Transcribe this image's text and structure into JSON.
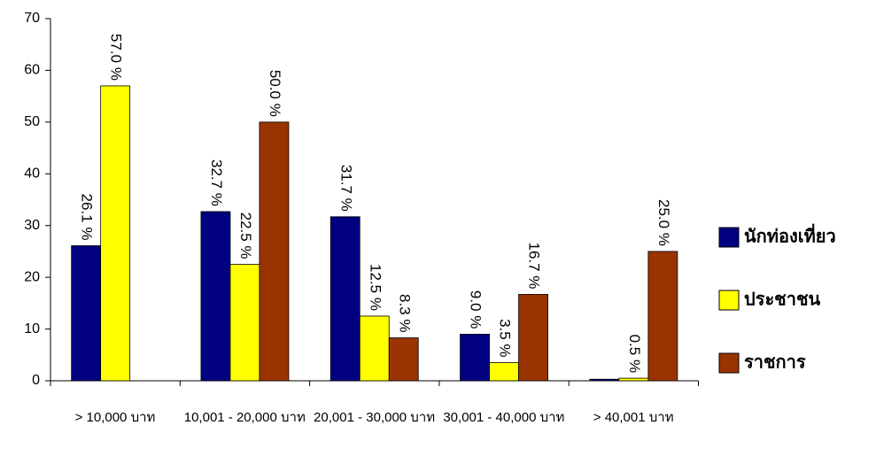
{
  "chart_data": {
    "type": "bar",
    "categories": [
      "> 10,000 บาท",
      "10,001 - 20,000 บาท",
      "20,001 - 30,000 บาท",
      "30,001 - 40,000 บาท",
      "> 40,001 บาท"
    ],
    "series": [
      {
        "name": "นักท่องเที่ยว",
        "color": "#000080",
        "values": [
          26.1,
          32.7,
          31.7,
          9.0,
          0.3
        ],
        "value_labels": [
          "26.1 %",
          "32.7 %",
          "31.7 %",
          "9.0 %",
          null
        ]
      },
      {
        "name": "ประชาชน",
        "color": "#ffff00",
        "values": [
          57.0,
          22.5,
          12.5,
          3.5,
          0.5
        ],
        "value_labels": [
          "57.0 %",
          "22.5 %",
          "12.5 %",
          "3.5 %",
          "0.5 %"
        ]
      },
      {
        "name": "ราชการ",
        "color": "#993300",
        "values": [
          null,
          50.0,
          8.3,
          16.7,
          25.0
        ],
        "value_labels": [
          null,
          "50.0 %",
          "8.3 %",
          "16.7 %",
          "25.0 %"
        ]
      }
    ],
    "ylim": [
      0,
      70
    ],
    "yticks": [
      0,
      10,
      20,
      30,
      40,
      50,
      60,
      70
    ],
    "legend": "right"
  }
}
